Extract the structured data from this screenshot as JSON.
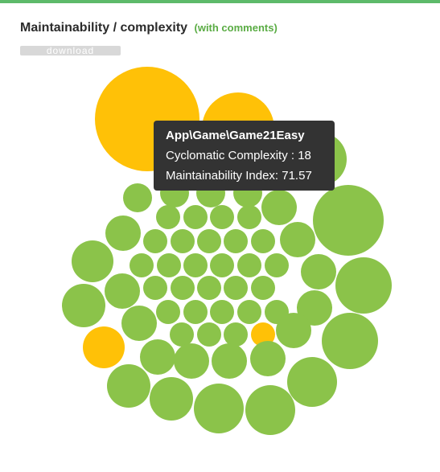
{
  "header": {
    "title": "Maintainability / complexity",
    "subtitle": "(with comments)",
    "download_label": "download"
  },
  "colors": {
    "good": "#8bc34a",
    "warning": "#ffc107",
    "accent_border": "#5dba6a",
    "tooltip_bg": "#333333"
  },
  "tooltip": {
    "title": "App\\Game\\Game21Easy",
    "complexity_label": "Cyclomatic Complexity : 18",
    "maintainability_label": "Maintainability Index: 71.57"
  },
  "chart_data": {
    "type": "bubble",
    "description_of_encoding": "",
    "highlighted_class": {
      "name": "App\\Game\\Game21Easy",
      "cyclomatic_complexity": 18,
      "maintainability_index": 71.57
    }
  }
}
